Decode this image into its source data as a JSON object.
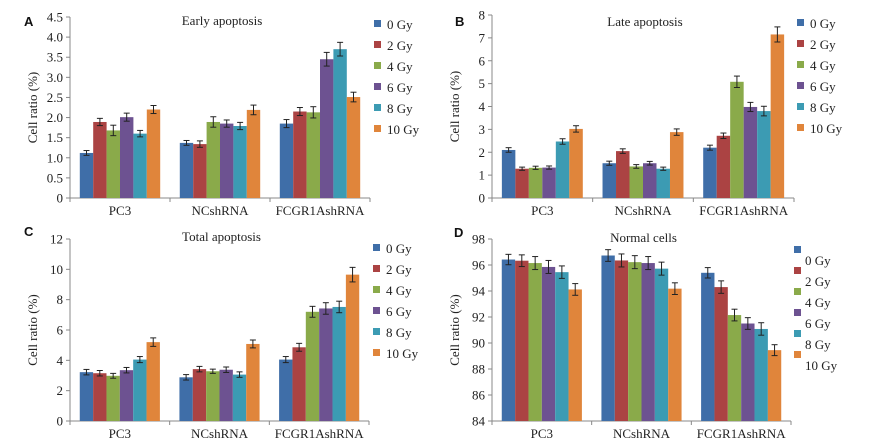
{
  "series_colors": {
    "0 Gy": "#3f6ea8",
    "2 Gy": "#ab4343",
    "4 Gy": "#8aaa4a",
    "6 Gy": "#6d5291",
    "8 Gy": "#3c9bb3",
    "10 Gy": "#e0853b"
  },
  "chart_data": [
    {
      "panel": "A",
      "type": "bar",
      "title": "Early apoptosis",
      "xlabel": "",
      "ylabel": "Cell ratio (%)",
      "ylim": [
        0,
        4.5
      ],
      "yticks": [
        "0",
        "0.5",
        "1.0",
        "1.5",
        "2.0",
        "2.5",
        "3.0",
        "3.5",
        "4.0",
        "4.5"
      ],
      "ytick_values": [
        0,
        0.5,
        1.0,
        1.5,
        2.0,
        2.5,
        3.0,
        3.5,
        4.0,
        4.5
      ],
      "categories": [
        "PC3",
        "NCshRNA",
        "FCGR1AshRNA"
      ],
      "legend": "right",
      "series": [
        {
          "name": "0 Gy",
          "values": [
            1.12,
            1.37,
            1.85
          ],
          "errors": [
            0.06,
            0.06,
            0.1
          ]
        },
        {
          "name": "2 Gy",
          "values": [
            1.89,
            1.34,
            2.15
          ],
          "errors": [
            0.09,
            0.08,
            0.1
          ]
        },
        {
          "name": "4 Gy",
          "values": [
            1.68,
            1.89,
            2.13
          ],
          "errors": [
            0.13,
            0.13,
            0.14
          ]
        },
        {
          "name": "6 Gy",
          "values": [
            2.01,
            1.85,
            3.45
          ],
          "errors": [
            0.1,
            0.09,
            0.17
          ]
        },
        {
          "name": "8 Gy",
          "values": [
            1.6,
            1.79,
            3.7
          ],
          "errors": [
            0.08,
            0.09,
            0.17
          ]
        },
        {
          "name": "10 Gy",
          "values": [
            2.2,
            2.19,
            2.51
          ],
          "errors": [
            0.1,
            0.12,
            0.12
          ]
        }
      ]
    },
    {
      "panel": "B",
      "type": "bar",
      "title": "Late apoptosis",
      "xlabel": "",
      "ylabel": "Cell ratio (%)",
      "ylim": [
        0,
        8
      ],
      "yticks": [
        "0",
        "1",
        "2",
        "3",
        "4",
        "5",
        "6",
        "7",
        "8"
      ],
      "ytick_values": [
        0,
        1,
        2,
        3,
        4,
        5,
        6,
        7,
        8
      ],
      "categories": [
        "PC3",
        "NCshRNA",
        "FCGR1AshRNA"
      ],
      "legend": "right",
      "series": [
        {
          "name": "0 Gy",
          "values": [
            2.1,
            1.52,
            2.2
          ],
          "errors": [
            0.1,
            0.09,
            0.11
          ]
        },
        {
          "name": "2 Gy",
          "values": [
            1.28,
            2.05,
            2.72
          ],
          "errors": [
            0.07,
            0.1,
            0.12
          ]
        },
        {
          "name": "4 Gy",
          "values": [
            1.32,
            1.38,
            5.08
          ],
          "errors": [
            0.07,
            0.08,
            0.25
          ]
        },
        {
          "name": "6 Gy",
          "values": [
            1.33,
            1.52,
            3.98
          ],
          "errors": [
            0.07,
            0.08,
            0.2
          ]
        },
        {
          "name": "8 Gy",
          "values": [
            2.47,
            1.28,
            3.8
          ],
          "errors": [
            0.12,
            0.07,
            0.21
          ]
        },
        {
          "name": "10 Gy",
          "values": [
            3.02,
            2.88,
            7.15
          ],
          "errors": [
            0.14,
            0.14,
            0.33
          ]
        }
      ]
    },
    {
      "panel": "C",
      "type": "bar",
      "title": "Total apoptosis",
      "xlabel": "",
      "ylabel": "Cell ratio (%)",
      "ylim": [
        0,
        12
      ],
      "yticks": [
        "0",
        "2",
        "4",
        "6",
        "8",
        "10",
        "12"
      ],
      "ytick_values": [
        0,
        2,
        4,
        6,
        8,
        10,
        12
      ],
      "categories": [
        "PC3",
        "NCshRNA",
        "FCGR1AshRNA"
      ],
      "legend": "right",
      "series": [
        {
          "name": "0 Gy",
          "values": [
            3.22,
            2.88,
            4.05
          ],
          "errors": [
            0.18,
            0.18,
            0.2
          ]
        },
        {
          "name": "2 Gy",
          "values": [
            3.15,
            3.42,
            4.86
          ],
          "errors": [
            0.18,
            0.18,
            0.26
          ]
        },
        {
          "name": "4 Gy",
          "values": [
            2.98,
            3.28,
            7.2
          ],
          "errors": [
            0.16,
            0.14,
            0.36
          ]
        },
        {
          "name": "6 Gy",
          "values": [
            3.35,
            3.38,
            7.42
          ],
          "errors": [
            0.18,
            0.18,
            0.38
          ]
        },
        {
          "name": "8 Gy",
          "values": [
            4.05,
            3.06,
            7.52
          ],
          "errors": [
            0.2,
            0.18,
            0.38
          ]
        },
        {
          "name": "10 Gy",
          "values": [
            5.2,
            5.08,
            9.65
          ],
          "errors": [
            0.28,
            0.26,
            0.48
          ]
        }
      ]
    },
    {
      "panel": "D",
      "type": "bar",
      "title": "Normal cells",
      "xlabel": "",
      "ylabel": "Cell ratio (%)",
      "ylim": [
        84,
        98
      ],
      "yticks": [
        "84",
        "86",
        "88",
        "90",
        "92",
        "94",
        "96",
        "98"
      ],
      "ytick_values": [
        84,
        86,
        88,
        90,
        92,
        94,
        96,
        98
      ],
      "categories": [
        "PC3",
        "NCshRNA",
        "FCGR1AshRNA"
      ],
      "legend": "right",
      "series": [
        {
          "name": "0 Gy",
          "values": [
            96.42,
            96.73,
            95.4
          ],
          "errors": [
            0.4,
            0.45,
            0.4
          ]
        },
        {
          "name": "2 Gy",
          "values": [
            96.33,
            96.35,
            94.3
          ],
          "errors": [
            0.45,
            0.5,
            0.48
          ]
        },
        {
          "name": "4 Gy",
          "values": [
            96.15,
            96.22,
            92.15
          ],
          "errors": [
            0.5,
            0.5,
            0.45
          ]
        },
        {
          "name": "6 Gy",
          "values": [
            95.85,
            96.15,
            91.5
          ],
          "errors": [
            0.5,
            0.5,
            0.45
          ]
        },
        {
          "name": "8 Gy",
          "values": [
            95.45,
            95.72,
            91.08
          ],
          "errors": [
            0.48,
            0.5,
            0.48
          ]
        },
        {
          "name": "10 Gy",
          "values": [
            94.12,
            94.18,
            89.45
          ],
          "errors": [
            0.45,
            0.45,
            0.42
          ]
        }
      ]
    }
  ]
}
